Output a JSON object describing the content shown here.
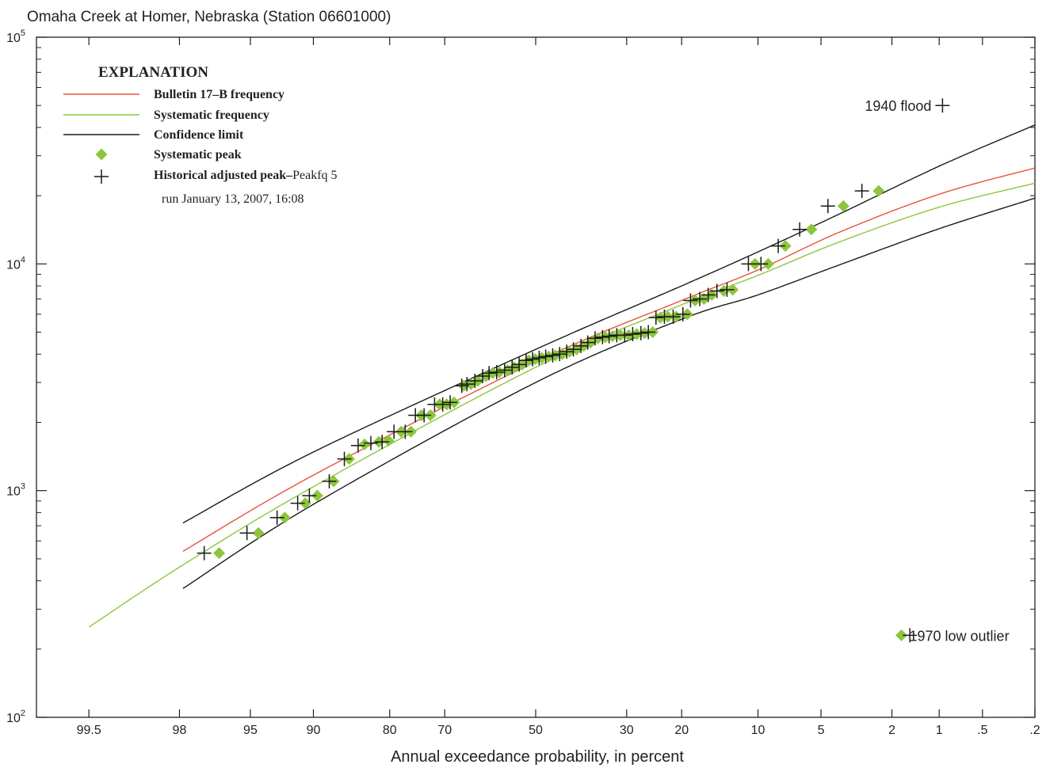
{
  "chart_data": {
    "type": "scatter",
    "title": "Omaha Creek at Homer, Nebraska (Station 06601000)",
    "xlabel": "Annual exceedance probability, in percent",
    "ylabel": "",
    "x_scale": "normal-probability",
    "x_direction": "decreasing",
    "y_scale": "log",
    "ylim": [
      100,
      100000
    ],
    "xlim": [
      99.8,
      0.2
    ],
    "x_ticks": [
      {
        "value": 99.5,
        "label": "99.5"
      },
      {
        "value": 98,
        "label": "98"
      },
      {
        "value": 95,
        "label": "95"
      },
      {
        "value": 90,
        "label": "90"
      },
      {
        "value": 80,
        "label": "80"
      },
      {
        "value": 70,
        "label": "70"
      },
      {
        "value": 50,
        "label": "50"
      },
      {
        "value": 30,
        "label": "30"
      },
      {
        "value": 20,
        "label": "20"
      },
      {
        "value": 10,
        "label": "10"
      },
      {
        "value": 5,
        "label": "5"
      },
      {
        "value": 2,
        "label": "2"
      },
      {
        "value": 1,
        "label": "1"
      },
      {
        "value": 0.5,
        "label": ".5"
      },
      {
        "value": 0.2,
        "label": ".2"
      }
    ],
    "y_ticks": [
      {
        "value": 100,
        "base": "10",
        "exp": "2"
      },
      {
        "value": 1000,
        "base": "10",
        "exp": "3"
      },
      {
        "value": 10000,
        "base": "10",
        "exp": "4"
      },
      {
        "value": 100000,
        "base": "10",
        "exp": "5"
      }
    ],
    "grid": false,
    "legend": {
      "placement": "top-left",
      "title": "EXPLANATION",
      "items": [
        {
          "kind": "line",
          "color": "#e8533a",
          "label": "Bulletin 17–B frequency"
        },
        {
          "kind": "line",
          "color": "#8cc63e",
          "label": "Systematic frequency"
        },
        {
          "kind": "line",
          "color": "#1a1a1a",
          "label": "Confidence limit"
        },
        {
          "kind": "diamond",
          "color": "#8cc63e",
          "label": "Systematic peak"
        },
        {
          "kind": "plus",
          "color": "#1a1a1a",
          "label": "Historical adjusted peak–",
          "label_suffix": "Peakfq 5"
        }
      ],
      "note": "run January 13, 2007, 16:08"
    },
    "series": [
      {
        "name": "Bulletin 17–B frequency",
        "kind": "line",
        "color": "#e8533a",
        "points": [
          [
            97.9,
            540
          ],
          [
            90,
            1170
          ],
          [
            50,
            3700
          ],
          [
            20,
            6900
          ],
          [
            10,
            9400
          ],
          [
            4,
            13800
          ],
          [
            1,
            20300
          ],
          [
            0.2,
            26500
          ]
        ]
      },
      {
        "name": "Systematic frequency",
        "kind": "line",
        "color": "#8cc63e",
        "points": [
          [
            99.5,
            250
          ],
          [
            97.9,
            470
          ],
          [
            90,
            1040
          ],
          [
            50,
            3500
          ],
          [
            20,
            6600
          ],
          [
            10,
            8900
          ],
          [
            4,
            12500
          ],
          [
            1,
            17800
          ],
          [
            0.2,
            22700
          ]
        ]
      },
      {
        "name": "Confidence limit",
        "kind": "line",
        "color": "#1a1a1a",
        "points": [
          [
            97.9,
            720
          ],
          [
            90,
            1480
          ],
          [
            50,
            4200
          ],
          [
            20,
            8000
          ],
          [
            10,
            11300
          ],
          [
            4,
            16600
          ],
          [
            1,
            27000
          ],
          [
            0.2,
            41000
          ]
        ]
      },
      {
        "name": "Confidence limit",
        "kind": "line",
        "color": "#1a1a1a",
        "points": [
          [
            97.9,
            370
          ],
          [
            90,
            870
          ],
          [
            50,
            3000
          ],
          [
            20,
            5700
          ],
          [
            10,
            7300
          ],
          [
            4,
            9900
          ],
          [
            1,
            14300
          ],
          [
            0.2,
            19500
          ]
        ]
      },
      {
        "name": "Systematic peak",
        "kind": "diamond",
        "color": "#8cc63e",
        "points": [
          [
            96.6,
            530
          ],
          [
            94.5,
            650
          ],
          [
            92.6,
            760
          ],
          [
            90.8,
            880
          ],
          [
            89.6,
            950
          ],
          [
            87.8,
            1100
          ],
          [
            85.9,
            1380
          ],
          [
            83.8,
            1600
          ],
          [
            81.7,
            1640
          ],
          [
            80.2,
            1660
          ],
          [
            78.1,
            1820
          ],
          [
            76.4,
            1820
          ],
          [
            74.5,
            2150
          ],
          [
            72.8,
            2150
          ],
          [
            71.0,
            2400
          ],
          [
            69.6,
            2400
          ],
          [
            68.1,
            2450
          ],
          [
            66.1,
            2900
          ],
          [
            64.6,
            2950
          ],
          [
            63.1,
            3050
          ],
          [
            61.3,
            3200
          ],
          [
            59.8,
            3300
          ],
          [
            58.3,
            3330
          ],
          [
            56.4,
            3400
          ],
          [
            54.9,
            3500
          ],
          [
            53.1,
            3600
          ],
          [
            51.6,
            3750
          ],
          [
            50.1,
            3800
          ],
          [
            48.6,
            3850
          ],
          [
            47.0,
            3900
          ],
          [
            45.5,
            3950
          ],
          [
            43.9,
            4000
          ],
          [
            42.3,
            4100
          ],
          [
            40.7,
            4200
          ],
          [
            39.1,
            4350
          ],
          [
            37.6,
            4500
          ],
          [
            36.0,
            4700
          ],
          [
            34.4,
            4750
          ],
          [
            32.9,
            4800
          ],
          [
            31.3,
            4850
          ],
          [
            29.6,
            4850
          ],
          [
            28.0,
            4900
          ],
          [
            26.5,
            4950
          ],
          [
            25.0,
            5000
          ],
          [
            23.6,
            5800
          ],
          [
            22.3,
            5850
          ],
          [
            20.9,
            5850
          ],
          [
            19.1,
            6000
          ],
          [
            17.9,
            6900
          ],
          [
            16.6,
            7000
          ],
          [
            15.5,
            7300
          ],
          [
            13.9,
            7600
          ],
          [
            12.8,
            7700
          ],
          [
            10.3,
            10000
          ],
          [
            9.0,
            10000
          ],
          [
            7.5,
            12000
          ],
          [
            5.6,
            14200
          ],
          [
            3.8,
            18000
          ],
          [
            2.4,
            21000
          ],
          [
            1.75,
            230
          ]
        ]
      },
      {
        "name": "Historical adjusted peak",
        "kind": "plus",
        "color": "#1a1a1a",
        "points": [
          [
            97.2,
            530
          ],
          [
            95.2,
            650
          ],
          [
            93.2,
            760
          ],
          [
            91.5,
            880
          ],
          [
            90.4,
            950
          ],
          [
            88.3,
            1100
          ],
          [
            86.5,
            1380
          ],
          [
            84.7,
            1580
          ],
          [
            82.9,
            1620
          ],
          [
            81.2,
            1640
          ],
          [
            79.3,
            1820
          ],
          [
            77.4,
            1820
          ],
          [
            75.6,
            2150
          ],
          [
            74.0,
            2150
          ],
          [
            72.0,
            2400
          ],
          [
            70.4,
            2400
          ],
          [
            68.9,
            2450
          ],
          [
            66.5,
            2900
          ],
          [
            65.4,
            2950
          ],
          [
            63.7,
            3050
          ],
          [
            62.0,
            3200
          ],
          [
            60.6,
            3300
          ],
          [
            58.9,
            3330
          ],
          [
            57.1,
            3400
          ],
          [
            55.4,
            3500
          ],
          [
            53.8,
            3600
          ],
          [
            52.2,
            3750
          ],
          [
            50.7,
            3800
          ],
          [
            49.2,
            3850
          ],
          [
            47.7,
            3900
          ],
          [
            46.1,
            3950
          ],
          [
            44.5,
            4000
          ],
          [
            42.9,
            4100
          ],
          [
            41.4,
            4200
          ],
          [
            39.7,
            4350
          ],
          [
            38.2,
            4500
          ],
          [
            36.6,
            4700
          ],
          [
            35.0,
            4750
          ],
          [
            33.6,
            4800
          ],
          [
            32.0,
            4850
          ],
          [
            30.4,
            4850
          ],
          [
            28.8,
            4900
          ],
          [
            27.2,
            4950
          ],
          [
            25.8,
            5000
          ],
          [
            24.4,
            5800
          ],
          [
            22.9,
            5850
          ],
          [
            21.4,
            5850
          ],
          [
            19.8,
            6000
          ],
          [
            18.6,
            6900
          ],
          [
            17.2,
            7000
          ],
          [
            16.0,
            7300
          ],
          [
            14.8,
            7600
          ],
          [
            13.5,
            7700
          ],
          [
            11.0,
            10000
          ],
          [
            9.7,
            10000
          ],
          [
            8.1,
            12000
          ],
          [
            6.4,
            14200
          ],
          [
            4.6,
            18000
          ],
          [
            3.0,
            21000
          ],
          [
            0.95,
            50000
          ],
          [
            1.55,
            230
          ]
        ]
      }
    ],
    "annotations": [
      {
        "text": "1940 flood",
        "x": 0.95,
        "y": 50000,
        "anchor": "left-of-point"
      },
      {
        "text": "1970 low outlier",
        "x": 1.75,
        "y": 230,
        "anchor": "right-of-point"
      }
    ]
  }
}
